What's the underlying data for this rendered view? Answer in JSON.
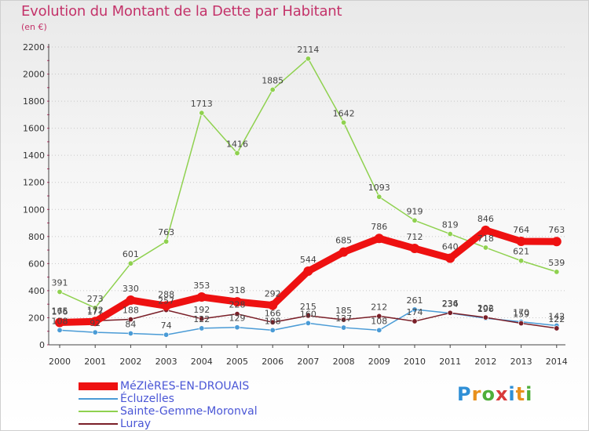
{
  "header": {
    "title": "Evolution du Montant de la Dette par Habitant",
    "subtitle": "(en €)"
  },
  "logo": {
    "letters": [
      "P",
      "r",
      "o",
      "x",
      "i",
      "t",
      "i"
    ],
    "colors": [
      "#2f8fd6",
      "#e8901c",
      "#4fae3a",
      "#d83a3a",
      "#2f8fd6",
      "#e8901c",
      "#4fae3a"
    ]
  },
  "chart_data": {
    "type": "line",
    "x": [
      2000,
      2001,
      2002,
      2003,
      2004,
      2005,
      2006,
      2007,
      2008,
      2009,
      2010,
      2011,
      2012,
      2013,
      2014
    ],
    "ylim": [
      0,
      2200
    ],
    "yticks": [
      0,
      200,
      400,
      600,
      800,
      1000,
      1200,
      1400,
      1600,
      1800,
      2000,
      2200
    ],
    "grid": "horizontal dotted",
    "legend_position": "bottom-left",
    "series": [
      {
        "name": "MéZIèRES-EN-DROUAIS",
        "color": "#ee1111",
        "values": [
          165,
          172,
          330,
          288,
          353,
          318,
          292,
          544,
          685,
          786,
          712,
          640,
          846,
          764,
          763
        ]
      },
      {
        "name": "Écluzelles",
        "color": "#4a9bd6",
        "values": [
          108,
          92,
          84,
          74,
          122,
          129,
          108,
          160,
          127,
          108,
          261,
          234,
          196,
          170,
          142
        ]
      },
      {
        "name": "Sainte-Gemme-Moronval",
        "color": "#8fd14f",
        "values": [
          391,
          273,
          601,
          763,
          1713,
          1416,
          1885,
          2114,
          1642,
          1093,
          919,
          819,
          718,
          621,
          539
        ]
      },
      {
        "name": "Luray",
        "color": "#7a1f28",
        "values": [
          176,
          177,
          188,
          257,
          192,
          228,
          166,
          215,
          185,
          212,
          174,
          236,
          202,
          159,
          122
        ]
      }
    ]
  }
}
